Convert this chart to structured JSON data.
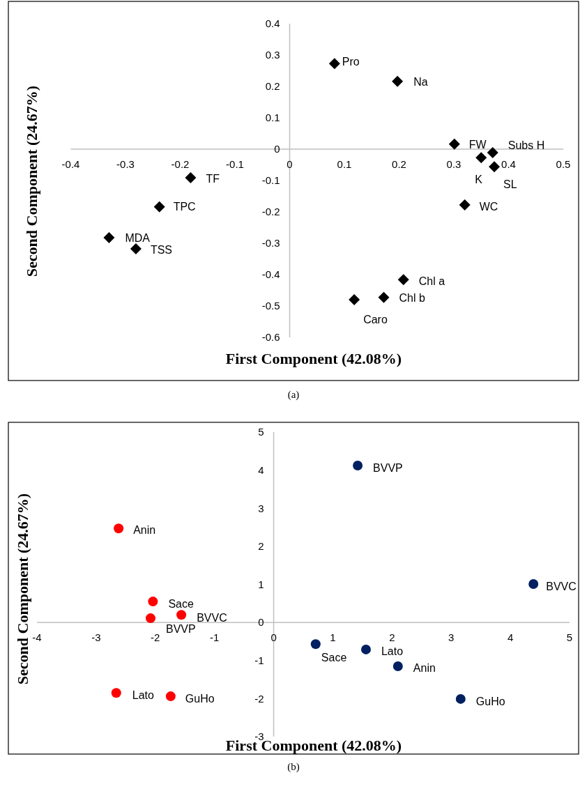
{
  "chart_data": [
    {
      "type": "scatter",
      "xlabel": "First Component (42.08%)",
      "ylabel": "Second Component (24.67%)",
      "xlim": [
        -0.4,
        0.5
      ],
      "ylim": [
        -0.6,
        0.4
      ],
      "xticks": [
        -0.4,
        -0.3,
        -0.2,
        -0.1,
        0,
        0.1,
        0.2,
        0.3,
        0.4,
        0.5
      ],
      "yticks": [
        -0.6,
        -0.5,
        -0.4,
        -0.3,
        -0.2,
        -0.1,
        0,
        0.1,
        0.2,
        0.3,
        0.4
      ],
      "marker": "diamond",
      "grid": false,
      "series": [
        {
          "color": "#000000",
          "x": [
            0.082,
            0.197,
            0.301,
            0.371,
            0.35,
            0.374,
            0.32,
            -0.181,
            -0.238,
            -0.33,
            -0.281,
            0.208,
            0.172,
            0.118
          ],
          "values": [
            0.273,
            0.216,
            0.016,
            -0.011,
            -0.027,
            -0.056,
            -0.178,
            -0.091,
            -0.184,
            -0.282,
            -0.318,
            -0.416,
            -0.473,
            -0.48
          ]
        }
      ],
      "annotations": [
        {
          "text": "Pro",
          "x": 0.082,
          "y": 0.273
        },
        {
          "text": "Na",
          "x": 0.197,
          "y": 0.216
        },
        {
          "text": "FW",
          "x": 0.301,
          "y": 0.016
        },
        {
          "text": "Subs H",
          "x": 0.371,
          "y": -0.011
        },
        {
          "text": "K",
          "x": 0.35,
          "y": -0.027
        },
        {
          "text": "SL",
          "x": 0.374,
          "y": -0.056
        },
        {
          "text": "WC",
          "x": 0.32,
          "y": -0.178
        },
        {
          "text": "TF",
          "x": -0.181,
          "y": -0.091
        },
        {
          "text": "TPC",
          "x": -0.238,
          "y": -0.184
        },
        {
          "text": "MDA",
          "x": -0.33,
          "y": -0.282
        },
        {
          "text": "TSS",
          "x": -0.281,
          "y": -0.318
        },
        {
          "text": "Chl a",
          "x": 0.208,
          "y": -0.416
        },
        {
          "text": "Chl b",
          "x": 0.172,
          "y": -0.473
        },
        {
          "text": "Caro",
          "x": 0.118,
          "y": -0.48
        },
        "(a)"
      ]
    },
    {
      "type": "scatter",
      "xlabel": "First Component (42.08%)",
      "ylabel": "Second Component (24.67%)",
      "xlim": [
        -4,
        5
      ],
      "ylim": [
        -3,
        5
      ],
      "xticks": [
        -4,
        -3,
        -2,
        -1,
        0,
        1,
        2,
        3,
        4,
        5
      ],
      "yticks": [
        -3,
        -2,
        -1,
        0,
        1,
        2,
        3,
        4,
        5
      ],
      "marker": "circle",
      "grid": false,
      "series": [
        {
          "color": "#ff0000",
          "x": [
            -2.62,
            -2.04,
            -1.56,
            -2.08,
            -2.66,
            -1.74
          ],
          "values": [
            2.47,
            0.55,
            0.2,
            0.11,
            -1.85,
            -1.94
          ]
        },
        {
          "color": "#002060",
          "x": [
            1.42,
            4.39,
            0.71,
            1.56,
            2.1,
            3.16
          ],
          "values": [
            4.12,
            1.01,
            -0.57,
            -0.71,
            -1.15,
            -2.01
          ]
        }
      ],
      "annotations": [
        {
          "text": "Anin",
          "x": -2.62,
          "y": 2.47
        },
        {
          "text": "Sace",
          "x": -2.04,
          "y": 0.55
        },
        {
          "text": "BVVC",
          "x": -1.56,
          "y": 0.2
        },
        {
          "text": "BVVP",
          "x": -2.08,
          "y": 0.11
        },
        {
          "text": "Lato",
          "x": -2.66,
          "y": -1.85
        },
        {
          "text": "GuHo",
          "x": -1.74,
          "y": -1.94
        },
        {
          "text": "BVVP",
          "x": 1.42,
          "y": 4.12
        },
        {
          "text": "BVVC",
          "x": 4.39,
          "y": 1.01
        },
        {
          "text": "Sace",
          "x": 0.71,
          "y": -0.57
        },
        {
          "text": "Lato",
          "x": 1.56,
          "y": -0.71
        },
        {
          "text": "Anin",
          "x": 2.1,
          "y": -1.15
        },
        {
          "text": "GuHo",
          "x": 3.16,
          "y": -2.01
        },
        "(b)"
      ]
    }
  ]
}
